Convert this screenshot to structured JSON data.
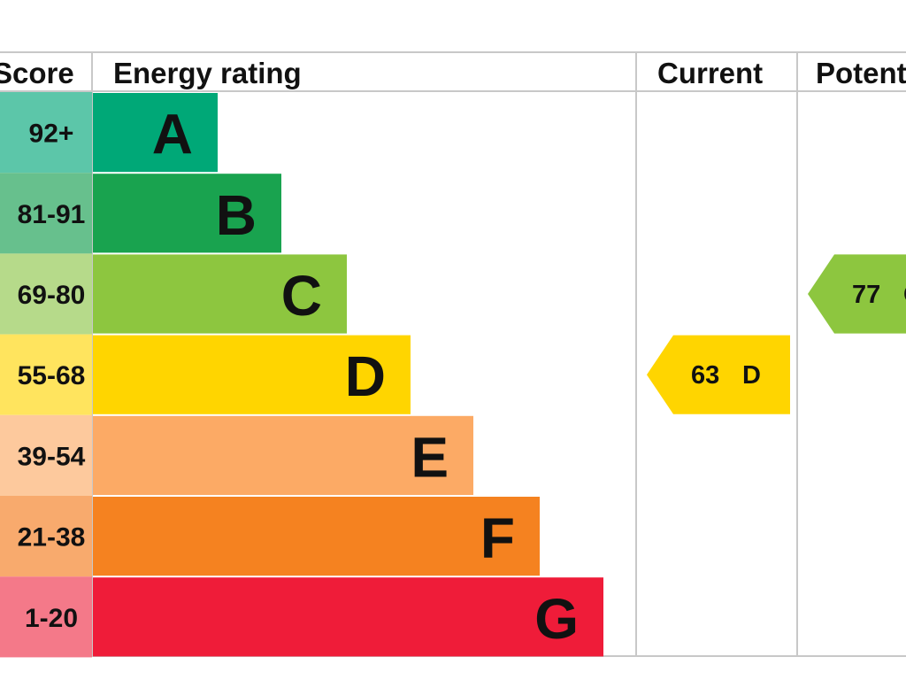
{
  "chart_data": {
    "type": "bar",
    "columns": {
      "score": "Score",
      "rating": "Energy rating",
      "current": "Current",
      "potential": "Potential"
    },
    "bands": [
      {
        "letter": "A",
        "range": "92+",
        "color": "#00a877"
      },
      {
        "letter": "B",
        "range": "81-91",
        "color": "#19a34f"
      },
      {
        "letter": "C",
        "range": "69-80",
        "color": "#8dc63f"
      },
      {
        "letter": "D",
        "range": "55-68",
        "color": "#ffd500"
      },
      {
        "letter": "E",
        "range": "39-54",
        "color": "#fcaa65"
      },
      {
        "letter": "F",
        "range": "21-38",
        "color": "#f58220"
      },
      {
        "letter": "G",
        "range": "1-20",
        "color": "#ef1c39"
      }
    ],
    "score_column_colors": [
      "#5cc6a9",
      "#67c08d",
      "#b6da8a",
      "#ffe45e",
      "#fdc99d",
      "#f8aa6d",
      "#f47989"
    ],
    "current": {
      "value": 63,
      "band": "D",
      "color": "#ffd500"
    },
    "potential": {
      "value": 77,
      "band": "C",
      "color": "#8dc63f"
    }
  }
}
